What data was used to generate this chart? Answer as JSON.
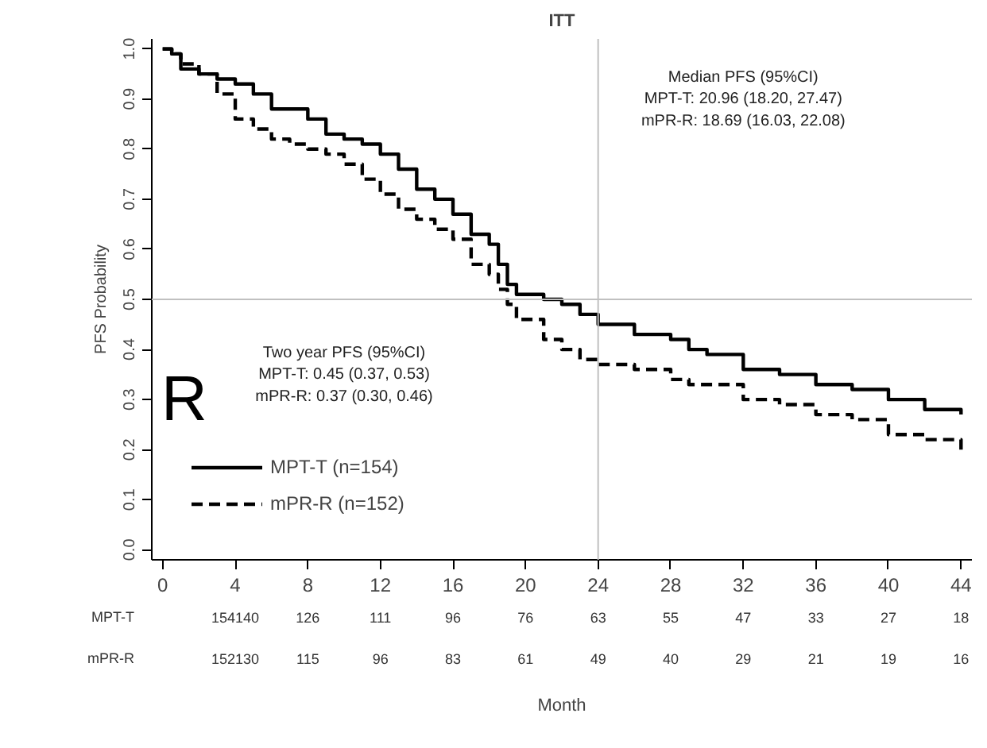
{
  "chart_data": {
    "type": "step",
    "title": "ITT",
    "ylabel": "PFS Probability",
    "x": [
      0,
      0.5,
      1,
      2,
      3,
      4,
      5,
      6,
      7,
      8,
      9,
      10,
      11,
      12,
      13,
      14,
      15,
      16,
      17,
      18,
      18.5,
      19,
      19.5,
      21,
      22,
      23,
      24,
      26,
      28,
      29,
      30,
      32,
      34,
      36,
      38,
      40,
      42,
      44
    ],
    "series": [
      {
        "name": "MPT-T (n=154)",
        "color": "#000000",
        "line_style": "solid",
        "values": [
          1.0,
          0.99,
          0.96,
          0.95,
          0.94,
          0.93,
          0.91,
          0.88,
          0.88,
          0.86,
          0.83,
          0.82,
          0.81,
          0.79,
          0.76,
          0.72,
          0.7,
          0.67,
          0.63,
          0.61,
          0.57,
          0.53,
          0.51,
          0.5,
          0.49,
          0.47,
          0.45,
          0.43,
          0.42,
          0.4,
          0.39,
          0.36,
          0.35,
          0.33,
          0.32,
          0.3,
          0.28,
          0.27
        ]
      },
      {
        "name": "mPR-R (n=152)",
        "color": "#000000",
        "line_style": "dashed",
        "values": [
          1.0,
          0.99,
          0.97,
          0.95,
          0.91,
          0.86,
          0.84,
          0.82,
          0.81,
          0.8,
          0.79,
          0.77,
          0.74,
          0.71,
          0.68,
          0.66,
          0.64,
          0.62,
          0.57,
          0.55,
          0.52,
          0.49,
          0.46,
          0.42,
          0.4,
          0.38,
          0.37,
          0.36,
          0.34,
          0.33,
          0.33,
          0.3,
          0.29,
          0.27,
          0.26,
          0.23,
          0.22,
          0.2
        ]
      }
    ],
    "xlim": [
      -0.6,
      44.6
    ],
    "ylim": [
      -0.02,
      1.02
    ],
    "xticks": [
      0,
      4,
      8,
      12,
      16,
      20,
      24,
      28,
      32,
      36,
      40,
      44
    ],
    "yticks": [
      {
        "value": 0,
        "label": "0.0"
      },
      {
        "value": 0.1,
        "label": "0.1"
      },
      {
        "value": 0.2,
        "label": "0.2"
      },
      {
        "value": 0.3,
        "label": "0.3"
      },
      {
        "value": 0.4,
        "label": "0.4"
      },
      {
        "value": 0.5,
        "label": "0.5"
      },
      {
        "value": 0.6,
        "label": "0.6"
      },
      {
        "value": 0.7,
        "label": "0.7"
      },
      {
        "value": 0.8,
        "label": "0.8"
      },
      {
        "value": 0.9,
        "label": "0.9"
      },
      {
        "value": 1,
        "label": "1.0"
      }
    ],
    "ref_lines": [
      {
        "axis": "y",
        "value": 0.5,
        "color": "#c0c0c0"
      },
      {
        "axis": "x",
        "value": 24,
        "color": "#c0c0c0"
      }
    ],
    "annotations": [
      "Median PFS (95%CI)\nMPT-T: 20.96 (18.20, 27.47)\nmPR-R: 18.69 (16.03, 22.08)",
      "Two year PFS (95%CI)\nMPT-T: 0.45 (0.37, 0.53)\nmPR-R: 0.37 (0.30, 0.46)",
      "R",
      "MPT-T 154140 126 111 96 76 63 55 47 33 27 18",
      "mPR-R 152130 115 96 83 61 49 40 29 21 19 16",
      "Month"
    ],
    "legend": "bottom left",
    "grid": false
  }
}
